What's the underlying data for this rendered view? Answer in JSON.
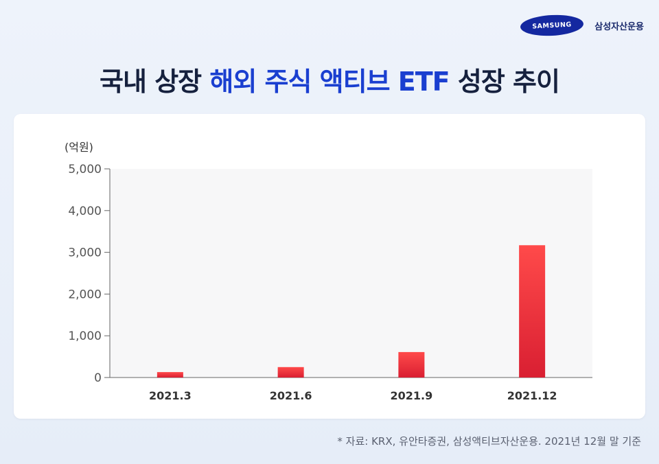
{
  "brand": {
    "logo_text": "SAMSUNG",
    "name": "삼성자산운용"
  },
  "title": {
    "part1": "국내 상장",
    "part2": "해외 주식 액티브",
    "part3": "ETF",
    "part4": "성장 추이"
  },
  "chart_data": {
    "type": "bar",
    "unit_label": "(억원)",
    "categories": [
      "2021.3",
      "2021.6",
      "2021.9",
      "2021.12"
    ],
    "values": [
      130,
      250,
      610,
      3170
    ],
    "ylim": [
      0,
      5000
    ],
    "yticks": [
      "0",
      "1,000",
      "2,000",
      "3,000",
      "4,000",
      "5,000"
    ],
    "ytick_values": [
      0,
      1000,
      2000,
      3000,
      4000,
      5000
    ],
    "grid": false,
    "colors": {
      "bar_top": "#ff4a4a",
      "bar_bottom": "#d91f32",
      "plot_bg": "#f7f7f8"
    }
  },
  "footnote": "* 자료: KRX, 유안타증권, 삼성액티브자산운용. 2021년 12월 말 기준"
}
